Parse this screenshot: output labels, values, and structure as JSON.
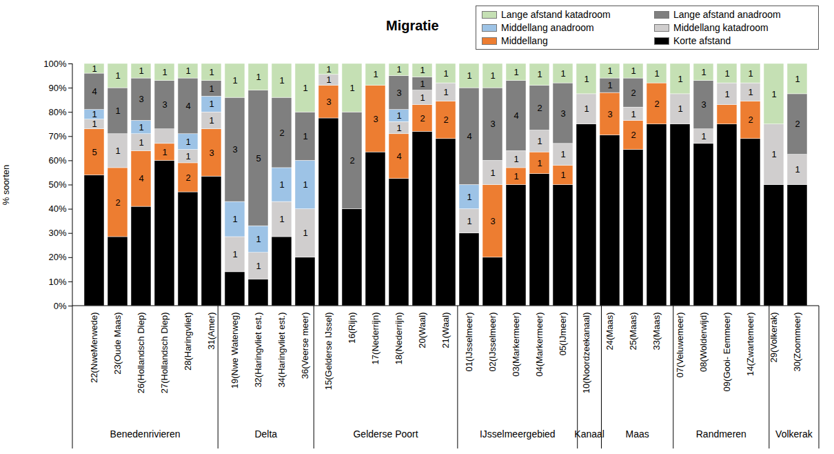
{
  "chart_data": {
    "type": "bar",
    "title": "Migratie",
    "ylabel": "% soorten",
    "stacked": true,
    "grid": false,
    "legend": "top-right",
    "ylim": [
      0,
      100
    ],
    "yticks": [
      {
        "value": 0,
        "label": "0%"
      },
      {
        "value": 10,
        "label": "10%"
      },
      {
        "value": 20,
        "label": "20%"
      },
      {
        "value": 30,
        "label": "30%"
      },
      {
        "value": 40,
        "label": "40%"
      },
      {
        "value": 50,
        "label": "50%"
      },
      {
        "value": 60,
        "label": "60%"
      },
      {
        "value": 70,
        "label": "70%"
      },
      {
        "value": 80,
        "label": "80%"
      },
      {
        "value": 90,
        "label": "90%"
      },
      {
        "value": 100,
        "label": "100%"
      }
    ],
    "categories": [
      "22(NweMerwede)",
      "23(Oude Maas)",
      "26(Hollandsch Diep)",
      "27(Hollandsch Diep)",
      "28(Haringvliet)",
      "31(Amer)",
      "19(Nwe Waterweg)",
      "32(Haringvliet est.)",
      "34(Haringvliet est.)",
      "36(Veerse meer)",
      "15(Gelderse IJssel)",
      "16(Rijn)",
      "17(Nederrijn)",
      "18(Nederrijn)",
      "20(Waal)",
      "21(Waal)",
      "01(IJsselmeer)",
      "02(IJsselmeer)",
      "03(Markermeer)",
      "04(Markermeer)",
      "05(IJmeer)",
      "10(Noordzeekanaal)",
      "24(Maas)",
      "25(Maas)",
      "33(Maas)",
      "07(Veluwemeer)",
      "08(Wolderwijd)",
      "09(Gooi- Eemmeer)",
      "14(Zwartemeer)",
      "29(Volkerak)",
      "30(Zoommeer)"
    ],
    "groups": [
      "Benedenrivieren",
      "Benedenrivieren",
      "Benedenrivieren",
      "Benedenrivieren",
      "Benedenrivieren",
      "Benedenrivieren",
      "Delta",
      "Delta",
      "Delta",
      "Delta",
      "Gelderse Poort",
      "Gelderse Poort",
      "Gelderse Poort",
      "Gelderse Poort",
      "Gelderse Poort",
      "Gelderse Poort",
      "IJsselmeergebied",
      "IJsselmeergebied",
      "IJsselmeergebied",
      "IJsselmeergebied",
      "IJsselmeergebied",
      "Kanaal",
      "Maas",
      "Maas",
      "Maas",
      "Randmeren",
      "Randmeren",
      "Randmeren",
      "Randmeren",
      "Volkerak",
      "Volkerak"
    ],
    "series": [
      {
        "name": "Korte afstand",
        "color": "#000000",
        "values": [
          54,
          28.5,
          41,
          60,
          47,
          53.5,
          14,
          11,
          28.5,
          20,
          77.5,
          40,
          63.5,
          52.5,
          72,
          69,
          30,
          20,
          50,
          54.5,
          50,
          75,
          70.5,
          64.5,
          75,
          75,
          67,
          75,
          69,
          50,
          50
        ],
        "counts": [
          null,
          null,
          null,
          null,
          null,
          null,
          null,
          null,
          null,
          null,
          null,
          null,
          null,
          null,
          null,
          null,
          null,
          null,
          null,
          null,
          null,
          null,
          null,
          null,
          null,
          null,
          null,
          null,
          null,
          null,
          null
        ]
      },
      {
        "name": "Middellang",
        "color": "#ed7d31",
        "values": [
          19,
          28.5,
          23,
          7,
          12,
          19.5,
          0,
          0,
          0,
          0,
          13.5,
          0,
          27.5,
          18.5,
          11,
          15.5,
          0,
          30,
          7,
          9,
          8,
          0,
          17.5,
          12,
          17,
          0,
          0,
          8,
          15.5,
          0,
          0
        ],
        "counts": [
          5,
          2,
          4,
          1,
          2,
          3,
          null,
          null,
          null,
          null,
          3,
          null,
          3,
          4,
          2,
          2,
          null,
          3,
          1,
          1,
          1,
          null,
          3,
          2,
          2,
          null,
          null,
          null,
          2,
          null,
          null
        ]
      },
      {
        "name": "Middellang katadroom",
        "color": "#d0cece",
        "values": [
          4,
          14,
          7,
          6,
          5.5,
          7,
          14.5,
          11,
          14.5,
          20,
          4.5,
          0,
          0,
          5,
          6,
          7.5,
          10,
          10,
          7,
          9,
          9,
          12.5,
          0,
          5.5,
          0,
          12.5,
          6,
          9,
          7.5,
          25,
          12.5
        ],
        "counts": [
          1,
          1,
          1,
          null,
          1,
          1,
          1,
          1,
          1,
          1,
          1,
          null,
          null,
          1,
          1,
          1,
          1,
          1,
          1,
          1,
          1,
          1,
          null,
          1,
          null,
          1,
          1,
          1,
          1,
          1,
          1
        ]
      },
      {
        "name": "Middellang anadroom",
        "color": "#9dc3e6",
        "values": [
          4,
          0,
          5.5,
          0,
          6.5,
          6.5,
          14.5,
          11,
          14,
          20,
          0,
          0,
          0,
          5,
          0,
          0,
          10,
          0,
          0,
          0,
          0,
          0,
          0,
          0,
          0,
          0,
          0,
          0,
          0,
          0,
          0
        ],
        "counts": [
          1,
          null,
          1,
          null,
          1,
          1,
          1,
          1,
          1,
          1,
          null,
          null,
          null,
          1,
          null,
          null,
          1,
          null,
          null,
          null,
          null,
          null,
          null,
          null,
          null,
          null,
          null,
          null,
          null,
          null,
          null
        ]
      },
      {
        "name": "Lange afstand anadroom",
        "color": "#7f7f7f",
        "values": [
          15,
          19,
          17.5,
          20,
          23,
          6.5,
          43,
          56,
          29,
          20,
          0,
          40,
          0,
          14,
          5.5,
          0,
          40,
          30,
          29,
          18.5,
          25,
          0,
          6,
          12,
          0,
          0,
          20,
          0,
          0,
          0,
          25
        ],
        "counts": [
          4,
          1,
          3,
          3,
          4,
          1,
          3,
          5,
          2,
          1,
          null,
          2,
          null,
          3,
          1,
          null,
          4,
          3,
          4,
          2,
          3,
          null,
          1,
          2,
          null,
          null,
          3,
          null,
          null,
          null,
          2
        ]
      },
      {
        "name": "Lange afstand katadroom",
        "color": "#c5e0b4",
        "values": [
          4,
          10,
          6,
          7,
          6,
          7,
          14,
          11,
          14,
          20,
          4.5,
          20,
          9,
          5,
          5.5,
          8,
          10,
          10,
          7,
          9,
          8,
          12.5,
          6,
          6,
          8,
          12.5,
          7,
          8,
          8,
          25,
          12.5
        ],
        "counts": [
          1,
          1,
          1,
          1,
          1,
          1,
          1,
          1,
          1,
          1,
          1,
          1,
          1,
          1,
          1,
          1,
          1,
          1,
          1,
          1,
          1,
          1,
          1,
          1,
          1,
          1,
          1,
          1,
          1,
          1,
          1
        ]
      }
    ]
  }
}
